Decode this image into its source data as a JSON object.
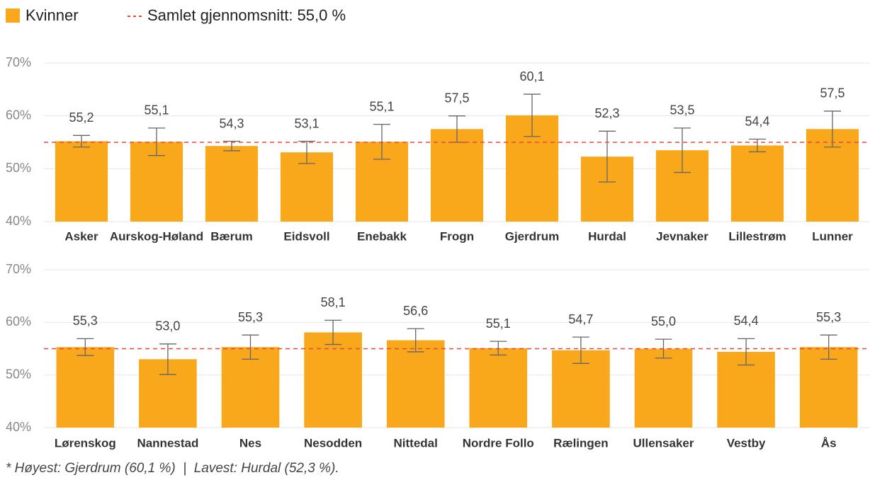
{
  "chart_data": [
    {
      "type": "bar",
      "categories": [
        "Asker",
        "Aurskog-Høland",
        "Bærum",
        "Eidsvoll",
        "Enebakk",
        "Frogn",
        "Gjerdrum",
        "Hurdal",
        "Jevnaker",
        "Lillestrøm",
        "Lunner"
      ],
      "series": [
        {
          "name": "Kvinner",
          "color": "#f9a81b",
          "values": [
            55.2,
            55.1,
            54.3,
            53.1,
            55.1,
            57.5,
            60.1,
            52.3,
            53.5,
            54.4,
            57.5
          ],
          "value_labels": [
            "55,2",
            "55,1",
            "54,3",
            "53,1",
            "55,1",
            "57,5",
            "60,1",
            "52,3",
            "53,5",
            "54,4",
            "57,5"
          ],
          "errors": [
            1.1,
            2.6,
            0.9,
            2.1,
            3.3,
            2.5,
            4.0,
            4.8,
            4.2,
            1.2,
            3.4
          ]
        }
      ],
      "ylim": [
        40,
        70
      ],
      "yticks": [
        {
          "value": 40,
          "label": "40%"
        },
        {
          "value": 50,
          "label": "50%"
        },
        {
          "value": 60,
          "label": "60%"
        },
        {
          "value": 70,
          "label": "70%"
        }
      ],
      "grid": true,
      "reference_line": {
        "name": "Samlet gjennomsnitt: 55,0 %",
        "value": 55,
        "color": "#e8483a"
      }
    },
    {
      "type": "bar",
      "categories": [
        "Lørenskog",
        "Nannestad",
        "Nes",
        "Nesodden",
        "Nittedal",
        "Nordre Follo",
        "Rælingen",
        "Ullensaker",
        "Vestby",
        "Ås"
      ],
      "series": [
        {
          "color": "#f9a81b",
          "values": [
            55.3,
            53.0,
            55.3,
            58.1,
            56.6,
            55.1,
            54.7,
            55.0,
            54.4,
            55.3
          ],
          "value_labels": [
            "55,3",
            "53,0",
            "55,3",
            "58,1",
            "56,6",
            "55,1",
            "54,7",
            "55,0",
            "54,4",
            "55,3"
          ],
          "errors": [
            1.6,
            2.9,
            2.3,
            2.3,
            2.2,
            1.3,
            2.5,
            1.8,
            2.5,
            2.3
          ]
        }
      ],
      "ylim": [
        40,
        70
      ],
      "yticks": [
        {
          "value": 40,
          "label": "40%"
        },
        {
          "value": 50,
          "label": "50%"
        },
        {
          "value": 60,
          "label": "60%"
        },
        {
          "value": 70,
          "label": "70%"
        }
      ],
      "grid": true,
      "reference_line": {
        "value": 55,
        "color": "#e8483a"
      }
    }
  ],
  "footnote": "* Høyest: Gjerdrum (60,1 %)  |  Lavest: Hurdal (52,3 %)."
}
